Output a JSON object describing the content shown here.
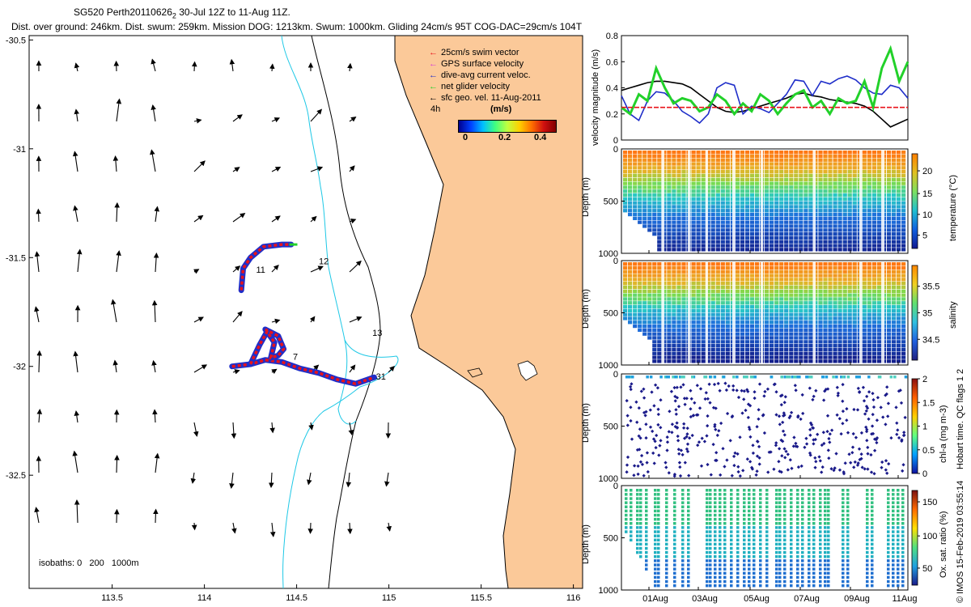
{
  "header": {
    "title_prefix": "SG520 Perth20110626",
    "title_sub": "2",
    "title_suffix": " 30-Jul 12Z to 11-Aug 11Z.",
    "stats": "Dist. over ground: 246km. Dist. swum: 259km. Mission DOG: 1213km. Swum: 1000km. Gliding 24cm/s 95T COG-DAC=29cm/s 104T"
  },
  "colors": {
    "land": "#fbc999",
    "swim_vector": "#e8131a",
    "gps_velocity": "#d63ad6",
    "dac": "#1f2ec9",
    "net_velocity": "#22d12a",
    "sfc_geo": "#000000",
    "isobath_200": "#1ec8e6",
    "isobath_1000": "#000000"
  },
  "chart_data": [
    {
      "type": "map",
      "xaxis_ticks": [
        "113.5",
        "114",
        "114.5",
        "115",
        "115.5",
        "116"
      ],
      "yaxis_ticks": [
        "-30.5",
        "-31",
        "-31.5",
        "-32",
        "-32.5"
      ],
      "xlim": [
        113.05,
        116.05
      ],
      "ylim": [
        -33.02,
        -30.48
      ],
      "legend": {
        "placement": "top-right",
        "items": [
          {
            "label": "25cm/s swim vector",
            "color": "#e8131a"
          },
          {
            "label": "GPS surface velocity",
            "color": "#d63ad6"
          },
          {
            "label": "dive-avg current veloc.",
            "color": "#1f2ec9"
          },
          {
            "label": "net glider velocity",
            "color": "#22d12a"
          },
          {
            "label": "sfc geo. vel. 11-Aug-2011",
            "color": "#000000"
          }
        ],
        "time_marker": "4h",
        "colorbar_title": "(m/s)",
        "colorbar_ticks": [
          "0",
          "0.2",
          "0.4"
        ]
      },
      "isobath_label": "isobaths: 0   200   1000m",
      "day_labels": [
        {
          "text": "11",
          "lon": 114.28,
          "lat": -31.57
        },
        {
          "text": "12",
          "lon": 114.62,
          "lat": -31.53
        },
        {
          "text": "13",
          "lon": 114.91,
          "lat": -31.86
        },
        {
          "text": "7",
          "lon": 114.48,
          "lat": -31.97
        },
        {
          "text": "31",
          "lon": 114.93,
          "lat": -32.06
        }
      ],
      "track": [
        [
          114.15,
          -32.0
        ],
        [
          114.25,
          -31.99
        ],
        [
          114.33,
          -31.97
        ],
        [
          114.42,
          -31.98
        ],
        [
          114.52,
          -32.01
        ],
        [
          114.62,
          -32.03
        ],
        [
          114.72,
          -32.06
        ],
        [
          114.82,
          -32.08
        ],
        [
          114.92,
          -32.05
        ]
      ],
      "track_loop": [
        [
          114.25,
          -31.99
        ],
        [
          114.3,
          -31.9
        ],
        [
          114.34,
          -31.84
        ],
        [
          114.38,
          -31.89
        ],
        [
          114.36,
          -31.96
        ],
        [
          114.4,
          -31.95
        ],
        [
          114.43,
          -31.92
        ],
        [
          114.4,
          -31.86
        ],
        [
          114.33,
          -31.83
        ]
      ],
      "track_north": [
        [
          114.2,
          -31.65
        ],
        [
          114.21,
          -31.55
        ],
        [
          114.25,
          -31.5
        ],
        [
          114.32,
          -31.45
        ],
        [
          114.42,
          -31.44
        ],
        [
          114.47,
          -31.44
        ]
      ]
    },
    {
      "type": "line",
      "ylabel": "velocity magnitude (m/s)",
      "ylim": [
        0,
        0.8
      ],
      "y_ticks": [
        "0",
        "0.2",
        "0.4",
        "0.6",
        "0.8"
      ],
      "series": [
        {
          "color": "#000000",
          "values": [
            0.38,
            0.4,
            0.42,
            0.44,
            0.45,
            0.45,
            0.44,
            0.43,
            0.4,
            0.35,
            0.3,
            0.25,
            0.22,
            0.21,
            0.22,
            0.24,
            0.26,
            0.28,
            0.3,
            0.32,
            0.35,
            0.36,
            0.34,
            0.33,
            0.31,
            0.3,
            0.29,
            0.28,
            0.26,
            0.22,
            0.16,
            0.1,
            0.13,
            0.16
          ]
        },
        {
          "color": "#1f2ec9",
          "values": [
            0.34,
            0.2,
            0.15,
            0.3,
            0.37,
            0.36,
            0.3,
            0.22,
            0.18,
            0.13,
            0.2,
            0.4,
            0.44,
            0.42,
            0.2,
            0.26,
            0.24,
            0.21,
            0.28,
            0.35,
            0.46,
            0.45,
            0.34,
            0.45,
            0.43,
            0.47,
            0.49,
            0.46,
            0.4,
            0.36,
            0.35,
            0.42,
            0.4,
            0.32
          ]
        },
        {
          "color": "#22d12a",
          "values": [
            0.25,
            0.2,
            0.35,
            0.3,
            0.55,
            0.4,
            0.28,
            0.32,
            0.3,
            0.22,
            0.25,
            0.35,
            0.3,
            0.2,
            0.28,
            0.22,
            0.35,
            0.3,
            0.2,
            0.28,
            0.35,
            0.38,
            0.25,
            0.3,
            0.2,
            0.32,
            0.28,
            0.3,
            0.45,
            0.25,
            0.55,
            0.7,
            0.45,
            0.6
          ]
        },
        {
          "color": "#e8131a",
          "values": [
            0.25,
            0.25,
            0.25,
            0.25,
            0.25,
            0.25,
            0.25,
            0.25,
            0.25,
            0.25,
            0.25,
            0.25,
            0.25,
            0.25,
            0.25,
            0.25,
            0.25,
            0.25,
            0.25,
            0.25,
            0.25,
            0.25,
            0.25,
            0.25,
            0.25,
            0.25,
            0.25,
            0.25,
            0.25,
            0.25,
            0.25,
            0.25,
            0.25,
            0.25
          ]
        }
      ]
    },
    {
      "type": "heatmap",
      "ylabel": "Depth (m)",
      "colorbar_label": "temperature (°C)",
      "colorbar_ticks": [
        "20",
        "15",
        "10",
        "5"
      ],
      "y_ticks": [
        "0",
        "500",
        "1000"
      ]
    },
    {
      "type": "heatmap",
      "ylabel": "Depth (m)",
      "colorbar_label": "salinity",
      "colorbar_ticks": [
        "35.5",
        "35",
        "34.5"
      ],
      "y_ticks": [
        "0",
        "500",
        "1000"
      ]
    },
    {
      "type": "scatter",
      "ylabel": "Depth (m)",
      "colorbar_label": "chl-a (mg m-3)",
      "colorbar_ticks": [
        "2",
        "1.5",
        "1",
        "0.5",
        "0"
      ],
      "y_ticks": [
        "0",
        "500",
        "1000"
      ]
    },
    {
      "type": "scatter",
      "ylabel": "Depth (m)",
      "colorbar_label": "Ox. sat. ratio (%)",
      "colorbar_ticks": [
        "150",
        "100",
        "50"
      ],
      "y_ticks": [
        "0",
        "500",
        "1000"
      ],
      "x_ticks": [
        "01Aug",
        "03Aug",
        "05Aug",
        "07Aug",
        "09Aug",
        "11Aug"
      ]
    }
  ],
  "footer": {
    "qc_label": "Hobart time. QC flags 1  2",
    "credit": "© IMOS 15-Feb-2019 03:55:14"
  }
}
